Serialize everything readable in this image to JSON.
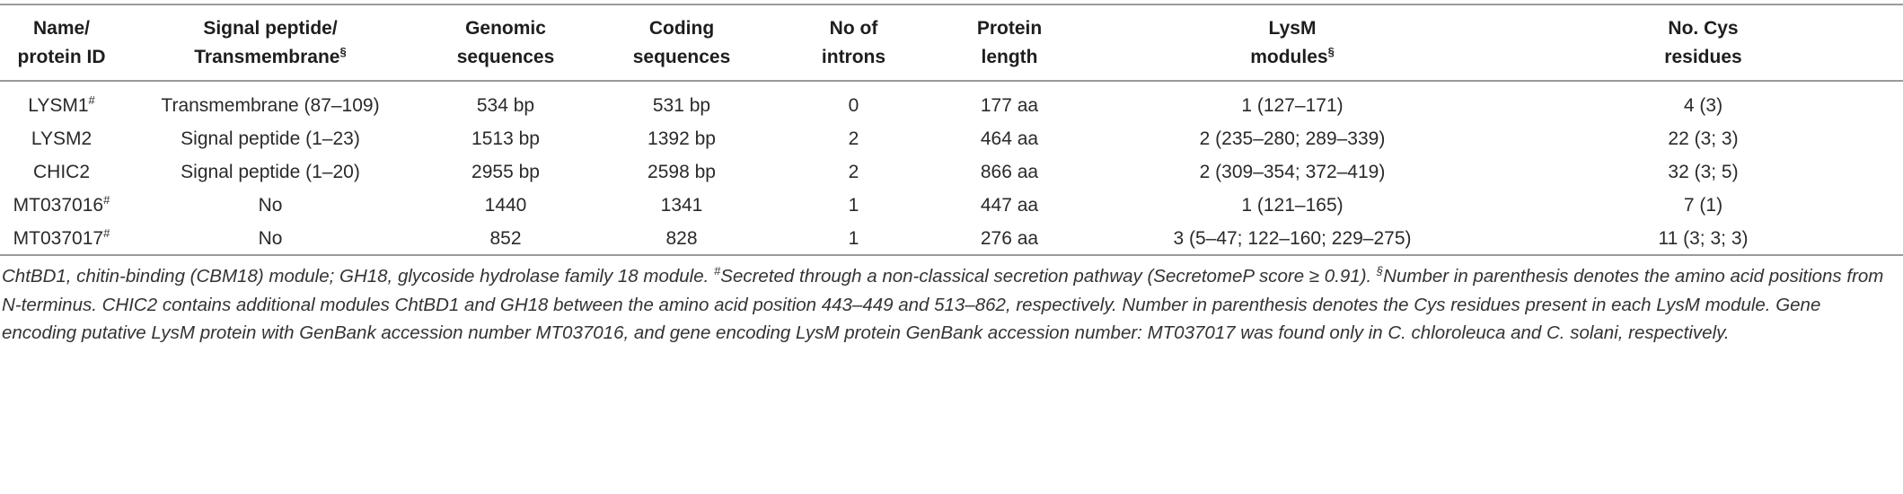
{
  "table": {
    "headers": [
      {
        "line1": "Name/",
        "line2": "protein ID",
        "sup": ""
      },
      {
        "line1": "Signal peptide/",
        "line2": "Transmembrane",
        "sup": "§"
      },
      {
        "line1": "Genomic",
        "line2": "sequences",
        "sup": ""
      },
      {
        "line1": "Coding",
        "line2": "sequences",
        "sup": ""
      },
      {
        "line1": "No of",
        "line2": "introns",
        "sup": ""
      },
      {
        "line1": "Protein",
        "line2": "length",
        "sup": ""
      },
      {
        "line1": "LysM",
        "line2": "modules",
        "sup": "§"
      },
      {
        "line1": "No. Cys",
        "line2": "residues",
        "sup": ""
      }
    ],
    "rows": [
      {
        "name": "LYSM1",
        "mark": "#",
        "signal": "Transmembrane (87–109)",
        "genomic": "534 bp",
        "coding": "531 bp",
        "introns": "0",
        "length": "177 aa",
        "modules": "1 (127–171)",
        "cys": "4 (3)"
      },
      {
        "name": "LYSM2",
        "mark": "",
        "signal": "Signal peptide (1–23)",
        "genomic": "1513 bp",
        "coding": "1392 bp",
        "introns": "2",
        "length": "464 aa",
        "modules": "2 (235–280; 289–339)",
        "cys": "22 (3; 3)"
      },
      {
        "name": "CHIC2",
        "mark": "",
        "signal": "Signal peptide (1–20)",
        "genomic": "2955 bp",
        "coding": "2598 bp",
        "introns": "2",
        "length": "866 aa",
        "modules": "2 (309–354; 372–419)",
        "cys": "32 (3; 5)"
      },
      {
        "name": "MT037016",
        "mark": "#",
        "signal": "No",
        "genomic": "1440",
        "coding": "1341",
        "introns": "1",
        "length": "447 aa",
        "modules": "1 (121–165)",
        "cys": "7 (1)"
      },
      {
        "name": "MT037017",
        "mark": "#",
        "signal": "No",
        "genomic": "852",
        "coding": "828",
        "introns": "1",
        "length": "276 aa",
        "modules": "3 (5–47; 122–160; 229–275)",
        "cys": "11 (3; 3; 3)"
      }
    ]
  },
  "footnotes": {
    "abbrev": "ChtBD1, chitin-binding (CBM18) module; GH18, glycoside hydrolase family 18 module.",
    "hash_mark": "#",
    "hash_text": "Secreted through a non-classical secretion pathway (SecretomeP score ≥ 0.91).",
    "section_mark": "§",
    "section_text": "Number in parenthesis denotes the amino acid positions from N-terminus. CHIC2 contains additional modules ChtBD1 and GH18 between the amino acid position 443–449 and 513–862, respectively. Number in parenthesis denotes the Cys residues present in each LysM module. Gene encoding putative LysM protein with GenBank accession number MT037016, and gene encoding LysM protein GenBank accession number: MT037017 was found only in C. chloroleuca and C. solani, respectively."
  }
}
